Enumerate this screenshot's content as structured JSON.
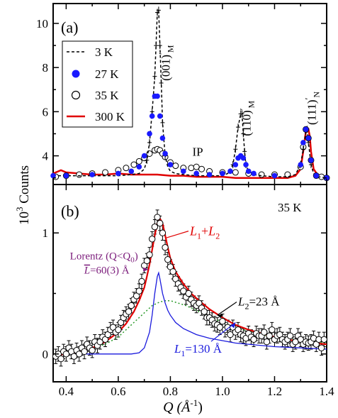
{
  "figure": {
    "ylabel_prefix": "10",
    "ylabel_sup": "3",
    "ylabel_suffix": " Counts",
    "xlabel_main": "Q (Å",
    "xlabel_sup": "-1",
    "xlabel_close": ")"
  },
  "chart_data": [
    {
      "type": "line",
      "panel_label": "(a)",
      "xlim": [
        0.35,
        1.4
      ],
      "ylim": [
        2.7,
        10.9
      ],
      "yticks": [
        4,
        6,
        8,
        10
      ],
      "ytick_labels": [
        "4",
        "6",
        "8",
        "10"
      ],
      "xticks": [
        0.4,
        0.6,
        0.8,
        1.0,
        1.2,
        1.4
      ],
      "grid": false,
      "legend_position": "top-left",
      "legend": [
        {
          "label": "3 K",
          "style": "dashed-line",
          "color": "#000000"
        },
        {
          "label": "27 K",
          "style": "filled-circle",
          "color": "#1a1aff"
        },
        {
          "label": "35 K",
          "style": "open-circle",
          "color": "#000000"
        },
        {
          "label": "300 K",
          "style": "solid-line",
          "color": "#e00000"
        }
      ],
      "annotations": [
        {
          "text": "(001)",
          "sup": "′",
          "sub": "M",
          "x": 0.76,
          "y": 7.4
        },
        {
          "text": "(110)",
          "sup": "′",
          "sub": "M",
          "x": 1.07,
          "y": 4.9
        },
        {
          "text": "(111)",
          "sup": "′",
          "sub": "N",
          "x": 1.32,
          "y": 5.4
        },
        {
          "text": "IP",
          "x": 0.905,
          "y": 4.0
        }
      ],
      "series": [
        {
          "name": "3 K",
          "color": "#000000",
          "x": [
            0.35,
            0.4,
            0.5,
            0.6,
            0.65,
            0.68,
            0.7,
            0.71,
            0.72,
            0.73,
            0.74,
            0.745,
            0.75,
            0.755,
            0.76,
            0.765,
            0.77,
            0.78,
            0.79,
            0.8,
            0.82,
            0.85,
            0.9,
            0.95,
            1.0,
            1.02,
            1.04,
            1.05,
            1.06,
            1.07,
            1.075,
            1.08,
            1.085,
            1.09,
            1.1,
            1.12,
            1.15,
            1.2,
            1.25,
            1.28,
            1.3,
            1.31,
            1.32,
            1.325,
            1.33,
            1.34,
            1.35,
            1.37,
            1.4
          ],
          "y": [
            3.1,
            3.1,
            3.1,
            3.1,
            3.15,
            3.2,
            3.4,
            3.8,
            4.6,
            6.0,
            7.6,
            9.0,
            10.5,
            10.6,
            9.0,
            7.3,
            5.5,
            4.0,
            3.5,
            3.3,
            3.2,
            3.15,
            3.1,
            3.1,
            3.1,
            3.2,
            3.6,
            4.3,
            5.3,
            5.9,
            5.9,
            5.0,
            4.2,
            3.6,
            3.3,
            3.15,
            3.1,
            3.05,
            3.05,
            3.15,
            3.6,
            4.3,
            5.1,
            5.2,
            4.6,
            3.6,
            3.2,
            3.05,
            3.0
          ]
        },
        {
          "name": "27 K",
          "color": "#1a1aff",
          "x": [
            0.35,
            0.4,
            0.5,
            0.6,
            0.65,
            0.68,
            0.7,
            0.72,
            0.73,
            0.74,
            0.75,
            0.76,
            0.77,
            0.78,
            0.8,
            0.85,
            0.9,
            0.95,
            1.0,
            1.03,
            1.05,
            1.06,
            1.07,
            1.08,
            1.09,
            1.1,
            1.12,
            1.2,
            1.3,
            1.31,
            1.32,
            1.33,
            1.34,
            1.36,
            1.4
          ],
          "y": [
            3.1,
            3.1,
            3.15,
            3.2,
            3.3,
            3.5,
            4.0,
            5.0,
            5.8,
            6.7,
            6.7,
            5.8,
            4.8,
            4.1,
            3.6,
            3.3,
            3.2,
            3.15,
            3.2,
            3.3,
            3.6,
            3.9,
            4.0,
            3.9,
            3.6,
            3.3,
            3.2,
            3.1,
            3.6,
            4.6,
            5.2,
            4.8,
            3.8,
            3.1,
            3.0
          ]
        },
        {
          "name": "35 K",
          "color": "#000000",
          "x": [
            0.36,
            0.4,
            0.45,
            0.5,
            0.55,
            0.6,
            0.63,
            0.66,
            0.68,
            0.7,
            0.72,
            0.74,
            0.75,
            0.76,
            0.77,
            0.78,
            0.8,
            0.82,
            0.85,
            0.88,
            0.9,
            0.92,
            0.95,
            1.0,
            1.05,
            1.1,
            1.15,
            1.2,
            1.25,
            1.3,
            1.31,
            1.32,
            1.33,
            1.34,
            1.36,
            1.38,
            1.4
          ],
          "y": [
            3.05,
            3.1,
            3.15,
            3.2,
            3.25,
            3.35,
            3.45,
            3.6,
            3.75,
            3.9,
            4.1,
            4.25,
            4.3,
            4.25,
            4.1,
            3.95,
            3.7,
            3.55,
            3.45,
            3.45,
            3.5,
            3.4,
            3.3,
            3.25,
            3.25,
            3.2,
            3.15,
            3.15,
            3.15,
            3.5,
            4.4,
            5.2,
            4.8,
            3.8,
            3.1,
            3.05,
            3.0
          ]
        },
        {
          "name": "300 K",
          "color": "#e00000",
          "x": [
            0.35,
            0.38,
            0.4,
            0.45,
            0.5,
            0.55,
            0.6,
            0.65,
            0.7,
            0.75,
            0.8,
            0.85,
            0.9,
            0.95,
            1.0,
            1.05,
            1.1,
            1.15,
            1.2,
            1.25,
            1.28,
            1.3,
            1.31,
            1.32,
            1.33,
            1.335,
            1.34,
            1.35,
            1.37,
            1.4
          ],
          "y": [
            3.2,
            3.35,
            3.25,
            3.2,
            3.15,
            3.15,
            3.2,
            3.15,
            3.15,
            3.15,
            3.1,
            3.1,
            3.05,
            3.05,
            3.05,
            3.0,
            3.0,
            3.0,
            3.0,
            3.0,
            3.1,
            3.4,
            4.2,
            5.1,
            5.2,
            4.9,
            4.2,
            3.4,
            3.05,
            3.0
          ]
        }
      ]
    },
    {
      "type": "line",
      "panel_label": "(b)",
      "temperature_label": "35 K",
      "xlim": [
        0.35,
        1.4
      ],
      "ylim": [
        -0.23,
        1.4
      ],
      "yticks": [
        0,
        1
      ],
      "ytick_labels": [
        "0",
        "1"
      ],
      "xticks": [
        0.4,
        0.6,
        0.8,
        1.0,
        1.2,
        1.4
      ],
      "xtick_labels": [
        "0.4",
        "0.6",
        "0.8",
        "1.0",
        "1.2",
        "1.4"
      ],
      "grid": false,
      "annotations": [
        {
          "name": "sum",
          "parts": [
            {
              "t": "L"
            },
            {
              "t": "1",
              "sub": true
            },
            {
              "t": "+"
            },
            {
              "t": "L"
            },
            {
              "t": "2",
              "sub": true
            }
          ],
          "color": "#e00000",
          "x": 0.875,
          "y": 0.98
        },
        {
          "name": "lorentz",
          "line1": "Lorentz (Q<Q",
          "line1_sub": "0",
          "line1_end": ")",
          "line2_pre": "L",
          "line2": "=60(3) Å",
          "color": "#7a1a7a",
          "x": 0.545,
          "y": 0.78
        },
        {
          "name": "l2",
          "parts": [
            {
              "t": "L"
            },
            {
              "t": "2",
              "sub": true
            },
            {
              "t": "=23 Å"
            }
          ],
          "color": "#000000",
          "x": 1.06,
          "y": 0.4
        },
        {
          "name": "l1",
          "parts": [
            {
              "t": "L"
            },
            {
              "t": "1",
              "sub": true
            },
            {
              "t": "=130 Å"
            }
          ],
          "color": "#1a1add",
          "x": 0.815,
          "y": 0.01
        }
      ],
      "series": [
        {
          "name": "data (35 K)",
          "x": [
            0.36,
            0.37,
            0.38,
            0.39,
            0.4,
            0.41,
            0.42,
            0.43,
            0.44,
            0.45,
            0.46,
            0.47,
            0.48,
            0.49,
            0.5,
            0.51,
            0.52,
            0.53,
            0.54,
            0.55,
            0.56,
            0.57,
            0.58,
            0.59,
            0.6,
            0.61,
            0.62,
            0.63,
            0.64,
            0.65,
            0.66,
            0.67,
            0.68,
            0.69,
            0.7,
            0.71,
            0.72,
            0.73,
            0.74,
            0.75,
            0.76,
            0.77,
            0.78,
            0.79,
            0.8,
            0.81,
            0.82,
            0.83,
            0.84,
            0.85,
            0.86,
            0.87,
            0.88,
            0.89,
            0.9,
            0.91,
            0.92,
            0.93,
            0.94,
            0.95,
            0.96,
            0.97,
            0.98,
            0.99,
            1.0,
            1.01,
            1.02,
            1.03,
            1.04,
            1.05,
            1.06,
            1.07,
            1.08,
            1.09,
            1.1,
            1.11,
            1.12,
            1.13,
            1.14,
            1.15,
            1.16,
            1.17,
            1.18,
            1.19,
            1.2,
            1.21,
            1.22,
            1.23,
            1.24,
            1.25,
            1.26,
            1.27,
            1.28,
            1.29,
            1.3,
            1.31,
            1.32,
            1.33,
            1.34,
            1.35,
            1.36,
            1.37,
            1.38,
            1.39
          ],
          "y": [
            -0.02,
            0.0,
            -0.04,
            0.02,
            0.0,
            0.05,
            0.02,
            -0.02,
            0.03,
            0.0,
            0.05,
            0.02,
            0.08,
            0.05,
            0.03,
            0.1,
            0.07,
            0.1,
            0.14,
            0.12,
            0.16,
            0.2,
            0.22,
            0.18,
            0.2,
            0.26,
            0.3,
            0.33,
            0.35,
            0.4,
            0.45,
            0.48,
            0.52,
            0.6,
            0.73,
            0.77,
            0.82,
            0.95,
            1.05,
            1.13,
            1.08,
            1.0,
            0.88,
            0.78,
            0.72,
            0.68,
            0.62,
            0.58,
            0.55,
            0.52,
            0.47,
            0.5,
            0.45,
            0.42,
            0.4,
            0.42,
            0.38,
            0.35,
            0.3,
            0.3,
            0.28,
            0.25,
            0.24,
            0.22,
            0.27,
            0.2,
            0.22,
            0.16,
            0.22,
            0.18,
            0.2,
            0.16,
            0.15,
            0.13,
            0.17,
            0.14,
            0.12,
            0.17,
            0.15,
            0.15,
            0.18,
            0.1,
            0.15,
            0.2,
            0.12,
            0.15,
            0.16,
            0.12,
            0.1,
            0.12,
            0.15,
            0.08,
            0.1,
            0.15,
            0.12,
            0.08,
            0.1,
            0.09,
            0.1,
            0.13,
            0.08,
            0.12,
            0.05,
            0.12
          ],
          "error": 0.06
        },
        {
          "name": "L1+L2",
          "color": "#e00000",
          "x": [
            0.35,
            0.4,
            0.45,
            0.5,
            0.55,
            0.6,
            0.63,
            0.66,
            0.68,
            0.7,
            0.71,
            0.72,
            0.73,
            0.74,
            0.75,
            0.76,
            0.77,
            0.78,
            0.79,
            0.8,
            0.82,
            0.85,
            0.88,
            0.9,
            0.95,
            1.0,
            1.05,
            1.1,
            1.15,
            1.2,
            1.25,
            1.3,
            1.35,
            1.4
          ],
          "y": [
            -0.01,
            0.0,
            0.02,
            0.05,
            0.1,
            0.18,
            0.25,
            0.35,
            0.44,
            0.55,
            0.64,
            0.74,
            0.86,
            0.98,
            1.08,
            1.12,
            1.08,
            0.98,
            0.88,
            0.79,
            0.68,
            0.58,
            0.5,
            0.46,
            0.37,
            0.3,
            0.24,
            0.2,
            0.17,
            0.14,
            0.12,
            0.1,
            0.09,
            0.08
          ]
        },
        {
          "name": "L1",
          "color": "#1a1add",
          "x": [
            0.35,
            0.6,
            0.65,
            0.68,
            0.7,
            0.72,
            0.73,
            0.74,
            0.75,
            0.755,
            0.76,
            0.77,
            0.78,
            0.79,
            0.8,
            0.82,
            0.85,
            0.9,
            0.95,
            1.0,
            1.05,
            1.1,
            1.2,
            1.3,
            1.4
          ],
          "y": [
            0.0,
            0.0,
            0.0,
            0.01,
            0.05,
            0.18,
            0.32,
            0.5,
            0.64,
            0.67,
            0.62,
            0.5,
            0.42,
            0.36,
            0.32,
            0.26,
            0.21,
            0.16,
            0.13,
            0.11,
            0.09,
            0.08,
            0.06,
            0.05,
            0.04
          ]
        },
        {
          "name": "L2",
          "color": "#2a9a2a",
          "x": [
            0.35,
            0.45,
            0.55,
            0.6,
            0.65,
            0.7,
            0.73,
            0.76,
            0.78,
            0.8,
            0.83,
            0.86,
            0.9,
            0.95,
            1.0,
            1.05,
            1.1,
            1.15,
            1.2,
            1.3,
            1.4
          ],
          "y": [
            0.0,
            0.02,
            0.08,
            0.14,
            0.24,
            0.34,
            0.4,
            0.43,
            0.44,
            0.44,
            0.42,
            0.4,
            0.36,
            0.31,
            0.26,
            0.22,
            0.19,
            0.16,
            0.14,
            0.11,
            0.09
          ]
        }
      ]
    }
  ]
}
